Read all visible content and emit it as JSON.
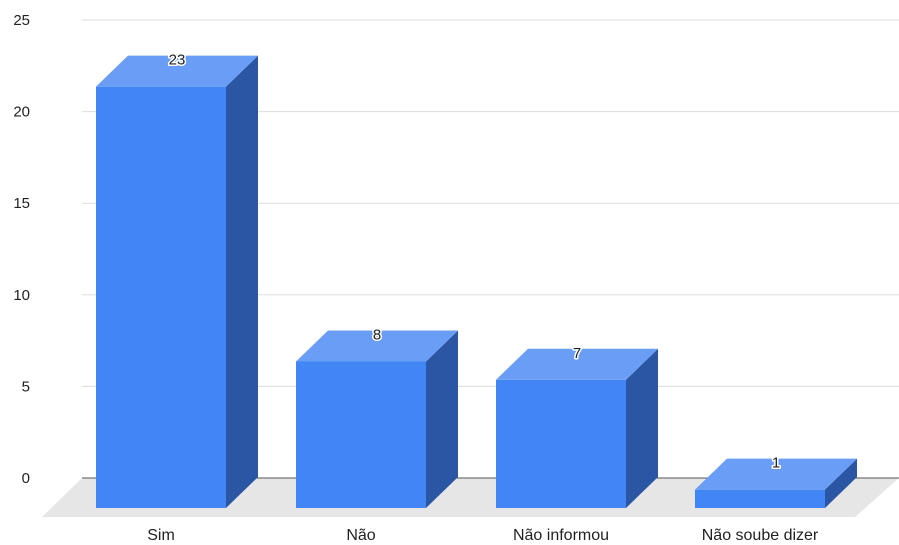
{
  "chart_data": {
    "type": "bar",
    "style": "3d-column",
    "categories": [
      "Sim",
      "Não",
      "Não informou",
      "Não soube dizer"
    ],
    "series": [
      {
        "values": [
          23,
          8,
          7,
          1
        ]
      }
    ],
    "data_labels": [
      "23",
      "8",
      "7",
      "1"
    ],
    "y_ticks": [
      "0",
      "5",
      "10",
      "15",
      "20",
      "25"
    ],
    "ylim": [
      0,
      25
    ],
    "grid": true,
    "legend": "none",
    "colors": {
      "bar_front": "#4285f4",
      "bar_top": "#6a9ef6",
      "bar_side": "#2b56a3",
      "floor": "#e6e6e6",
      "grid": "#dddddd",
      "baseline": "#555555"
    }
  }
}
